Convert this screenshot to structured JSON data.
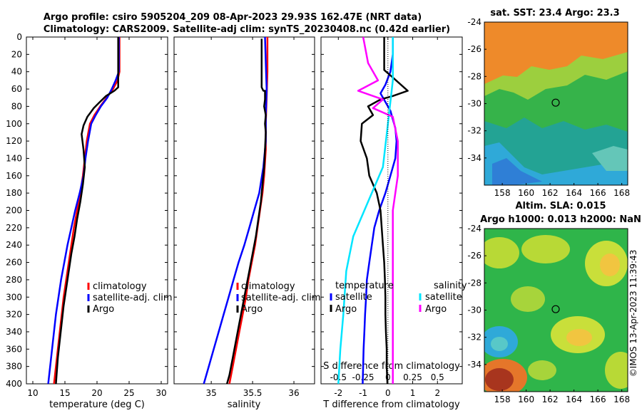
{
  "titles": {
    "line1": "Argo profile: csiro 5905204_209 08-Apr-2023 29.93S 162.47E (NRT data)",
    "line2": "Climatology: CARS2009. Satellite-adj clim: synTS_20230408.nc (0.42d earlier)"
  },
  "watermark": "©IMOS 13-Apr-2023 11:39:43",
  "chart_data": [
    {
      "id": "temperature",
      "type": "line",
      "xlabel": "temperature (deg C)",
      "ylabel": "",
      "xlim": [
        9,
        31
      ],
      "ylim": [
        400,
        0
      ],
      "xticks": [
        "10",
        "15",
        "20",
        "25",
        "30"
      ],
      "yticks": [
        "0",
        "20",
        "40",
        "60",
        "80",
        "100",
        "120",
        "140",
        "160",
        "180",
        "200",
        "220",
        "240",
        "260",
        "280",
        "300",
        "320",
        "340",
        "360",
        "380",
        "400"
      ],
      "legend": [
        "climatology",
        "satellite-adj. clim",
        "Argo"
      ],
      "series": [
        {
          "name": "climatology",
          "color": "#ff0000",
          "points": [
            [
              23.5,
              0
            ],
            [
              23.5,
              40
            ],
            [
              23.2,
              50
            ],
            [
              22.5,
              60
            ],
            [
              21.5,
              70
            ],
            [
              20.5,
              80
            ],
            [
              19.6,
              90
            ],
            [
              18.9,
              100
            ],
            [
              18.4,
              120
            ],
            [
              18.1,
              140
            ],
            [
              17.8,
              160
            ],
            [
              17.4,
              180
            ],
            [
              16.9,
              200
            ],
            [
              16.4,
              220
            ],
            [
              16.0,
              240
            ],
            [
              15.6,
              260
            ],
            [
              15.2,
              280
            ],
            [
              14.8,
              300
            ],
            [
              14.5,
              320
            ],
            [
              14.2,
              340
            ],
            [
              13.9,
              360
            ],
            [
              13.6,
              380
            ],
            [
              13.3,
              400
            ]
          ]
        },
        {
          "name": "satellite-adj. clim",
          "color": "#0000ff",
          "points": [
            [
              23.4,
              0
            ],
            [
              23.4,
              40
            ],
            [
              22.9,
              50
            ],
            [
              22.3,
              60
            ],
            [
              21.6,
              70
            ],
            [
              20.6,
              80
            ],
            [
              19.8,
              90
            ],
            [
              19.1,
              100
            ],
            [
              18.6,
              120
            ],
            [
              18.2,
              140
            ],
            [
              17.9,
              160
            ],
            [
              17.3,
              180
            ],
            [
              16.6,
              200
            ],
            [
              16.0,
              220
            ],
            [
              15.4,
              240
            ],
            [
              14.9,
              260
            ],
            [
              14.4,
              280
            ],
            [
              14.0,
              300
            ],
            [
              13.6,
              320
            ],
            [
              13.3,
              340
            ],
            [
              13.0,
              360
            ],
            [
              12.7,
              380
            ],
            [
              12.4,
              400
            ]
          ]
        },
        {
          "name": "Argo",
          "color": "#000000",
          "points": [
            [
              23.3,
              0
            ],
            [
              23.3,
              58
            ],
            [
              22.7,
              62
            ],
            [
              21.4,
              68
            ],
            [
              20.3,
              76
            ],
            [
              19.5,
              82
            ],
            [
              18.5,
              92
            ],
            [
              17.9,
              102
            ],
            [
              17.6,
              112
            ],
            [
              17.9,
              130
            ],
            [
              18.1,
              150
            ],
            [
              17.8,
              170
            ],
            [
              17.4,
              190
            ],
            [
              16.9,
              210
            ],
            [
              16.5,
              230
            ],
            [
              16.0,
              250
            ],
            [
              15.6,
              270
            ],
            [
              15.2,
              290
            ],
            [
              14.8,
              310
            ],
            [
              14.5,
              330
            ],
            [
              14.2,
              350
            ],
            [
              13.9,
              370
            ],
            [
              13.7,
              390
            ],
            [
              13.6,
              400
            ]
          ]
        }
      ]
    },
    {
      "id": "salinity",
      "type": "line",
      "xlabel": "salinity",
      "ylabel": "",
      "xlim": [
        34.55,
        36.25
      ],
      "ylim": [
        400,
        0
      ],
      "xticks": [
        "35",
        "35.5",
        "36"
      ],
      "legend": [
        "climatology",
        "satellite-adj. clim",
        "Argo"
      ],
      "series": [
        {
          "name": "climatology",
          "color": "#ff0000",
          "points": [
            [
              35.68,
              0
            ],
            [
              35.68,
              40
            ],
            [
              35.67,
              70
            ],
            [
              35.66,
              100
            ],
            [
              35.66,
              130
            ],
            [
              35.64,
              160
            ],
            [
              35.62,
              180
            ],
            [
              35.59,
              200
            ],
            [
              35.56,
              220
            ],
            [
              35.53,
              240
            ],
            [
              35.49,
              260
            ],
            [
              35.45,
              280
            ],
            [
              35.42,
              300
            ],
            [
              35.38,
              320
            ],
            [
              35.34,
              340
            ],
            [
              35.3,
              360
            ],
            [
              35.26,
              380
            ],
            [
              35.22,
              400
            ]
          ]
        },
        {
          "name": "satellite-adj. clim",
          "color": "#0000ff",
          "points": [
            [
              35.65,
              0
            ],
            [
              35.66,
              30
            ],
            [
              35.67,
              60
            ],
            [
              35.66,
              90
            ],
            [
              35.66,
              120
            ],
            [
              35.63,
              150
            ],
            [
              35.58,
              180
            ],
            [
              35.52,
              200
            ],
            [
              35.46,
              220
            ],
            [
              35.4,
              240
            ],
            [
              35.33,
              260
            ],
            [
              35.27,
              280
            ],
            [
              35.21,
              300
            ],
            [
              35.15,
              320
            ],
            [
              35.09,
              340
            ],
            [
              35.03,
              360
            ],
            [
              34.97,
              380
            ],
            [
              34.91,
              400
            ]
          ]
        },
        {
          "name": "Argo",
          "color": "#000000",
          "points": [
            [
              35.61,
              2
            ],
            [
              35.61,
              58
            ],
            [
              35.63,
              62
            ],
            [
              35.65,
              62
            ],
            [
              35.65,
              72
            ],
            [
              35.64,
              80
            ],
            [
              35.66,
              90
            ],
            [
              35.65,
              100
            ],
            [
              35.66,
              110
            ],
            [
              35.65,
              130
            ],
            [
              35.64,
              150
            ],
            [
              35.62,
              170
            ],
            [
              35.6,
              190
            ],
            [
              35.57,
              210
            ],
            [
              35.54,
              230
            ],
            [
              35.5,
              250
            ],
            [
              35.46,
              270
            ],
            [
              35.42,
              290
            ],
            [
              35.38,
              310
            ],
            [
              35.34,
              330
            ],
            [
              35.3,
              350
            ],
            [
              35.26,
              370
            ],
            [
              35.22,
              390
            ],
            [
              35.19,
              400
            ]
          ]
        }
      ]
    },
    {
      "id": "differences",
      "type": "line",
      "xlabel": "T difference from climatology",
      "top_xlabel": "S difference from climatology",
      "xlim": [
        -2.7,
        3.0
      ],
      "ylim": [
        400,
        0
      ],
      "xticks": [
        "-2",
        "-1",
        "0",
        "1",
        "2"
      ],
      "top_xticks": [
        "-0.5",
        "-0.25",
        "0",
        "0.25",
        "0.5"
      ],
      "legend_temperature_title": "temperature",
      "legend_salinity_title": "salinity",
      "legend": [
        "satellite",
        "Argo",
        "satellite",
        "Argo"
      ],
      "series": [
        {
          "name": "temperature satellite",
          "color": "#0000ff",
          "points": [
            [
              0.2,
              0
            ],
            [
              0.2,
              20
            ],
            [
              0.1,
              40
            ],
            [
              -0.1,
              55
            ],
            [
              -0.3,
              65
            ],
            [
              -0.1,
              75
            ],
            [
              0.1,
              85
            ],
            [
              0.2,
              95
            ],
            [
              0.3,
              105
            ],
            [
              0.35,
              120
            ],
            [
              0.3,
              140
            ],
            [
              0.1,
              160
            ],
            [
              -0.1,
              180
            ],
            [
              -0.35,
              200
            ],
            [
              -0.55,
              220
            ],
            [
              -0.65,
              240
            ],
            [
              -0.75,
              260
            ],
            [
              -0.85,
              280
            ],
            [
              -0.88,
              300
            ],
            [
              -0.92,
              320
            ],
            [
              -0.95,
              340
            ],
            [
              -0.98,
              360
            ],
            [
              -1.0,
              380
            ],
            [
              -1.02,
              400
            ]
          ]
        },
        {
          "name": "temperature Argo",
          "color": "#000000",
          "points": [
            [
              -0.15,
              0
            ],
            [
              -0.15,
              38
            ],
            [
              0.25,
              48
            ],
            [
              0.8,
              62
            ],
            [
              0.2,
              68
            ],
            [
              -0.3,
              72
            ],
            [
              -0.8,
              80
            ],
            [
              -0.6,
              90
            ],
            [
              -1.05,
              100
            ],
            [
              -1.1,
              120
            ],
            [
              -0.85,
              140
            ],
            [
              -0.75,
              160
            ],
            [
              -0.45,
              180
            ],
            [
              -0.3,
              200
            ],
            [
              -0.25,
              220
            ],
            [
              -0.2,
              240
            ],
            [
              -0.15,
              260
            ],
            [
              -0.12,
              280
            ],
            [
              -0.1,
              300
            ],
            [
              -0.1,
              320
            ],
            [
              -0.08,
              340
            ],
            [
              -0.05,
              360
            ],
            [
              -0.05,
              380
            ],
            [
              -0.02,
              400
            ]
          ]
        },
        {
          "name": "salinity satellite",
          "color": "#00e5ff",
          "points": [
            [
              0.05,
              0
            ],
            [
              0.05,
              50
            ],
            [
              0.0,
              100
            ],
            [
              -0.05,
              150
            ],
            [
              -0.2,
              190
            ],
            [
              -0.35,
              230
            ],
            [
              -0.42,
              270
            ],
            [
              -0.45,
              320
            ],
            [
              -0.48,
              360
            ],
            [
              -0.5,
              400
            ]
          ]
        },
        {
          "name": "salinity Argo",
          "color": "#ff00ff",
          "points": [
            [
              -0.25,
              0
            ],
            [
              -0.2,
              30
            ],
            [
              -0.1,
              50
            ],
            [
              -0.3,
              62
            ],
            [
              -0.05,
              72
            ],
            [
              -0.15,
              82
            ],
            [
              0.05,
              92
            ],
            [
              0.1,
              120
            ],
            [
              0.1,
              160
            ],
            [
              0.05,
              200
            ],
            [
              0.05,
              250
            ],
            [
              0.05,
              300
            ],
            [
              0.05,
              350
            ],
            [
              0.05,
              400
            ]
          ]
        }
      ]
    }
  ],
  "maps": [
    {
      "title_lines": [
        "sat. SST: 23.4 Argo: 23.3"
      ],
      "xticks": [
        "158",
        "160",
        "162",
        "164",
        "166",
        "168"
      ],
      "yticks": [
        "-24",
        "-26",
        "-28",
        "-30",
        "-32",
        "-34"
      ],
      "marker_lon": 162.47,
      "marker_lat": -29.93
    },
    {
      "title_lines": [
        "Altim. SLA: 0.015",
        "Argo h1000: 0.013 h2000: NaN"
      ],
      "xticks": [
        "158",
        "160",
        "162",
        "164",
        "166",
        "168"
      ],
      "yticks": [
        "-24",
        "-26",
        "-28",
        "-30",
        "-32",
        "-34"
      ],
      "marker_lon": 162.47,
      "marker_lat": -29.93
    }
  ]
}
